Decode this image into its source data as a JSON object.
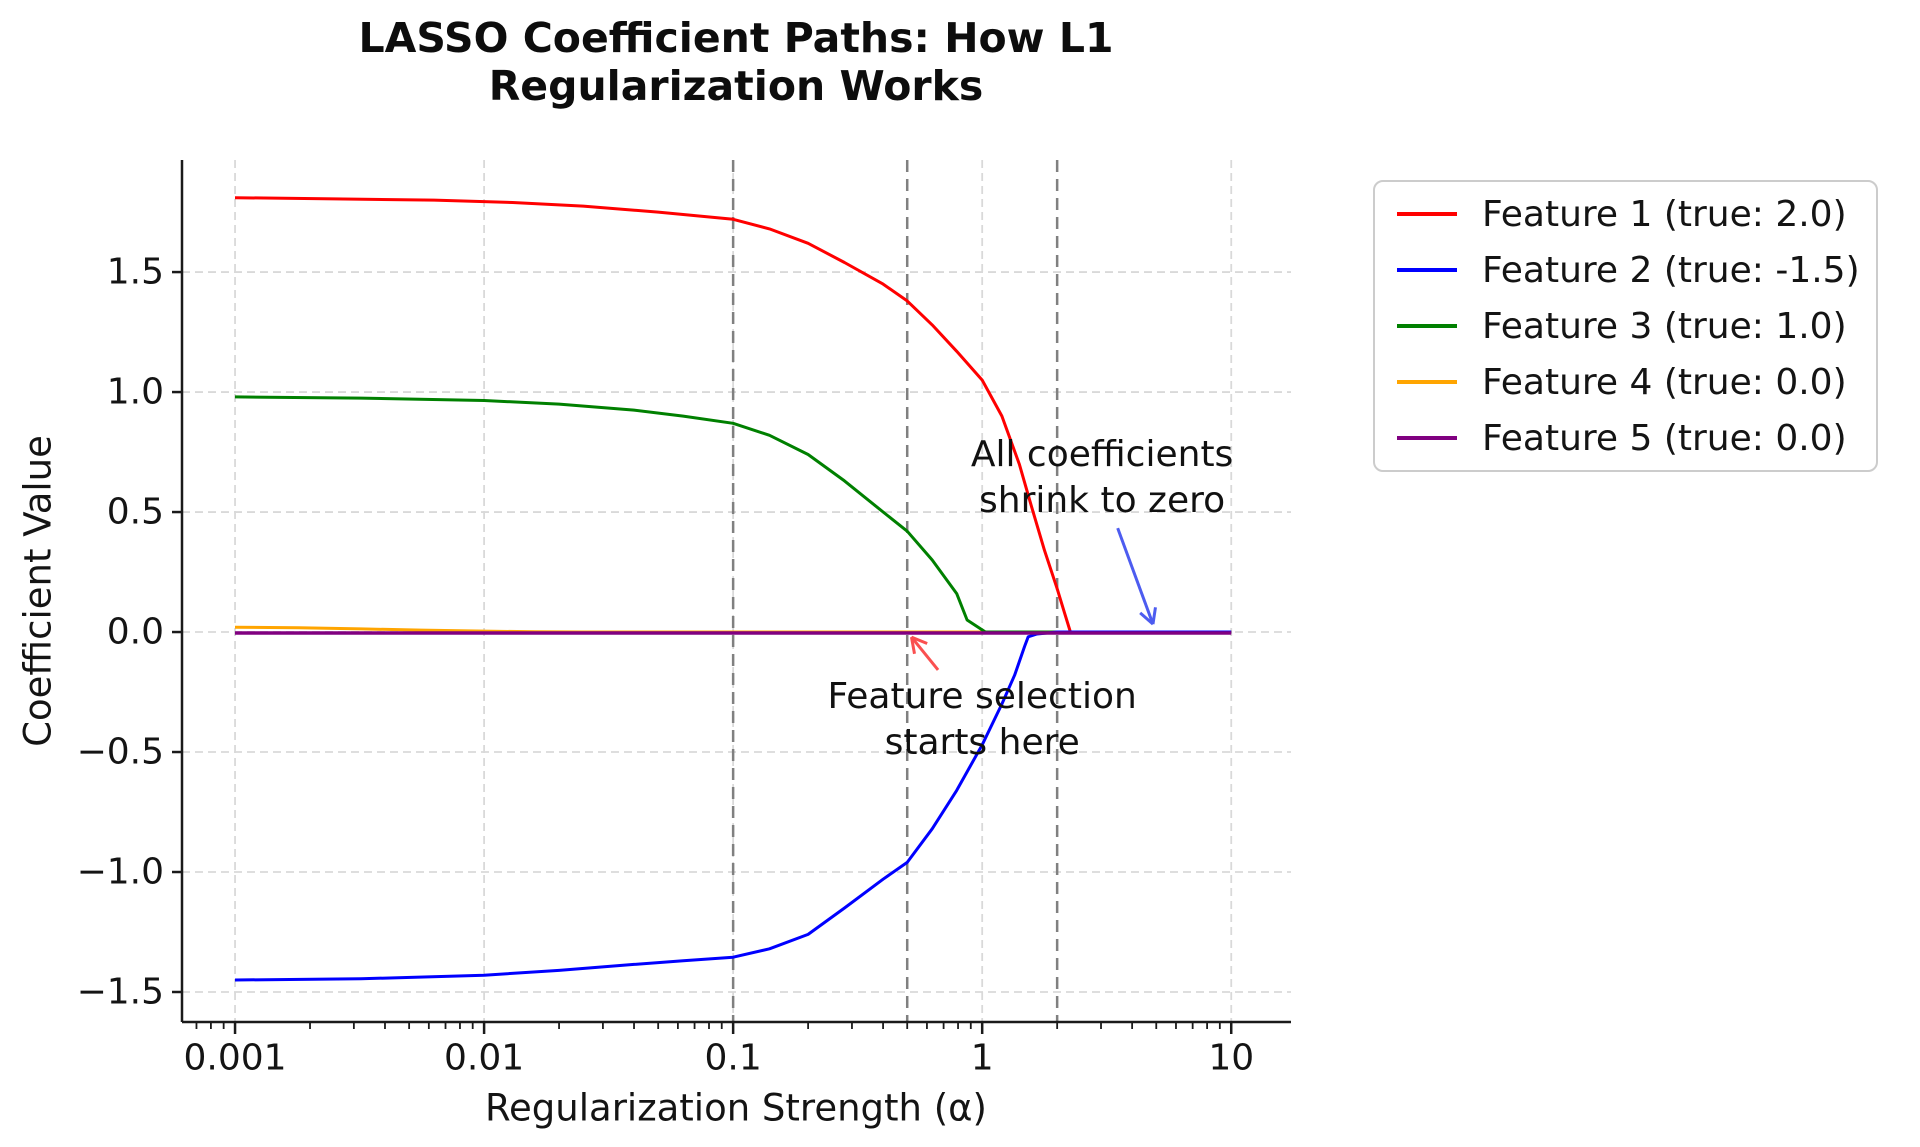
{
  "title": {
    "line1": "LASSO Coefficient Paths: How L1",
    "line2": "Regularization Works"
  },
  "axes": {
    "xlabel": "Regularization Strength (α)",
    "ylabel": "Coefficient Value",
    "x_ticks": [
      {
        "label": "0.001",
        "alpha": 0.001
      },
      {
        "label": "0.01",
        "alpha": 0.01
      },
      {
        "label": "0.1",
        "alpha": 0.1
      },
      {
        "label": "1",
        "alpha": 1
      },
      {
        "label": "10",
        "alpha": 10
      }
    ],
    "y_ticks": [
      {
        "label": "1.5",
        "value": 1.5
      },
      {
        "label": "1.0",
        "value": 1.0
      },
      {
        "label": "0.5",
        "value": 0.5
      },
      {
        "label": "0.0",
        "value": 0.0
      },
      {
        "label": "−0.5",
        "value": -0.5
      },
      {
        "label": "−1.0",
        "value": -1.0
      },
      {
        "label": "−1.5",
        "value": -1.5
      }
    ]
  },
  "legend": {
    "entries": [
      {
        "label": "Feature 1 (true: 2.0)",
        "color": "#ff0000"
      },
      {
        "label": "Feature 2 (true: -1.5)",
        "color": "#0000ff"
      },
      {
        "label": "Feature 3 (true: 1.0)",
        "color": "#008000"
      },
      {
        "label": "Feature 4 (true: 0.0)",
        "color": "#ffa500"
      },
      {
        "label": "Feature 5 (true: 0.0)",
        "color": "#800080"
      }
    ]
  },
  "chart_data": {
    "type": "line",
    "title": "LASSO Coefficient Paths: How L1 Regularization Works",
    "xlabel": "Regularization Strength (α)",
    "ylabel": "Coefficient Value",
    "x_scale": "log",
    "x_range_data": [
      0.001,
      10
    ],
    "xlim_log10": [
      -3.213,
      1.24
    ],
    "ylim": [
      -1.625,
      1.967
    ],
    "grid": "both-dashed-light",
    "legend_position": "outside-upper-right",
    "marked_alphas_dashed_vlines": [
      0.1,
      0.5,
      2.0
    ],
    "series": [
      {
        "name": "Feature 4 (true: 0.0)",
        "color": "#ffa500",
        "width": 3,
        "points": [
          [
            0.001,
            0.02
          ],
          [
            0.0018,
            0.018
          ],
          [
            0.0032,
            0.013
          ],
          [
            0.0056,
            0.008
          ],
          [
            0.01,
            0.004
          ],
          [
            0.016,
            0.001
          ],
          [
            0.025,
            0
          ],
          [
            10,
            0
          ]
        ]
      },
      {
        "name": "Feature 3 (true: 1.0)",
        "color": "#008000",
        "width": 3,
        "points": [
          [
            0.001,
            0.98
          ],
          [
            0.0032,
            0.975
          ],
          [
            0.01,
            0.965
          ],
          [
            0.02,
            0.95
          ],
          [
            0.04,
            0.925
          ],
          [
            0.063,
            0.9
          ],
          [
            0.1,
            0.87
          ],
          [
            0.14,
            0.82
          ],
          [
            0.2,
            0.74
          ],
          [
            0.28,
            0.63
          ],
          [
            0.4,
            0.5
          ],
          [
            0.5,
            0.42
          ],
          [
            0.63,
            0.3
          ],
          [
            0.79,
            0.16
          ],
          [
            0.87,
            0.05
          ],
          [
            1.03,
            0
          ],
          [
            10,
            0
          ]
        ]
      },
      {
        "name": "Feature 1 (true: 2.0)",
        "color": "#ff0000",
        "width": 3,
        "points": [
          [
            0.001,
            1.81
          ],
          [
            0.0025,
            1.805
          ],
          [
            0.0063,
            1.8
          ],
          [
            0.013,
            1.79
          ],
          [
            0.025,
            1.775
          ],
          [
            0.05,
            1.75
          ],
          [
            0.1,
            1.72
          ],
          [
            0.14,
            1.68
          ],
          [
            0.2,
            1.62
          ],
          [
            0.28,
            1.54
          ],
          [
            0.4,
            1.45
          ],
          [
            0.5,
            1.38
          ],
          [
            0.63,
            1.28
          ],
          [
            0.79,
            1.17
          ],
          [
            1.0,
            1.05
          ],
          [
            1.2,
            0.9
          ],
          [
            1.41,
            0.7
          ],
          [
            1.58,
            0.52
          ],
          [
            1.78,
            0.34
          ],
          [
            2.0,
            0.18
          ],
          [
            2.14,
            0.08
          ],
          [
            2.26,
            0
          ],
          [
            10,
            0
          ]
        ]
      },
      {
        "name": "Feature 2 (true: -1.5)",
        "color": "#0000ff",
        "width": 3,
        "points": [
          [
            0.001,
            -1.45
          ],
          [
            0.0032,
            -1.445
          ],
          [
            0.01,
            -1.43
          ],
          [
            0.02,
            -1.41
          ],
          [
            0.04,
            -1.385
          ],
          [
            0.063,
            -1.37
          ],
          [
            0.1,
            -1.355
          ],
          [
            0.14,
            -1.32
          ],
          [
            0.2,
            -1.26
          ],
          [
            0.28,
            -1.15
          ],
          [
            0.4,
            -1.03
          ],
          [
            0.5,
            -0.96
          ],
          [
            0.63,
            -0.82
          ],
          [
            0.79,
            -0.66
          ],
          [
            1.0,
            -0.47
          ],
          [
            1.2,
            -0.3
          ],
          [
            1.35,
            -0.18
          ],
          [
            1.48,
            -0.06
          ],
          [
            1.53,
            -0.02
          ],
          [
            1.66,
            -0.008
          ],
          [
            2.0,
            0
          ],
          [
            10,
            0
          ]
        ]
      },
      {
        "name": "Feature 5 (true: 0.0)",
        "color": "#800080",
        "width": 3.5,
        "points": [
          [
            0.001,
            -0.004
          ],
          [
            10,
            -0.004
          ]
        ]
      }
    ],
    "annotations": [
      {
        "text": "All coefficients\nshrink to zero",
        "center_alpha": 3.03,
        "center_value": 0.642,
        "arrow": {
          "color": "#4d5cf0",
          "from_alpha": 3.5,
          "from_value": 0.433,
          "to_alpha": 4.85,
          "to_value": 0.033
        }
      },
      {
        "text": "Feature selection\nstarts here",
        "center_alpha": 1.0,
        "center_value": -0.367,
        "arrow": {
          "color": "#fa5050",
          "from_alpha": 0.665,
          "from_value": -0.158,
          "to_alpha": 0.52,
          "to_value": -0.021
        }
      }
    ]
  },
  "style_colors": {
    "grid": "#d9d9d9",
    "dashed_vline": "#808080",
    "spine": "#1a1a1a",
    "legend_border": "#cccccc"
  }
}
